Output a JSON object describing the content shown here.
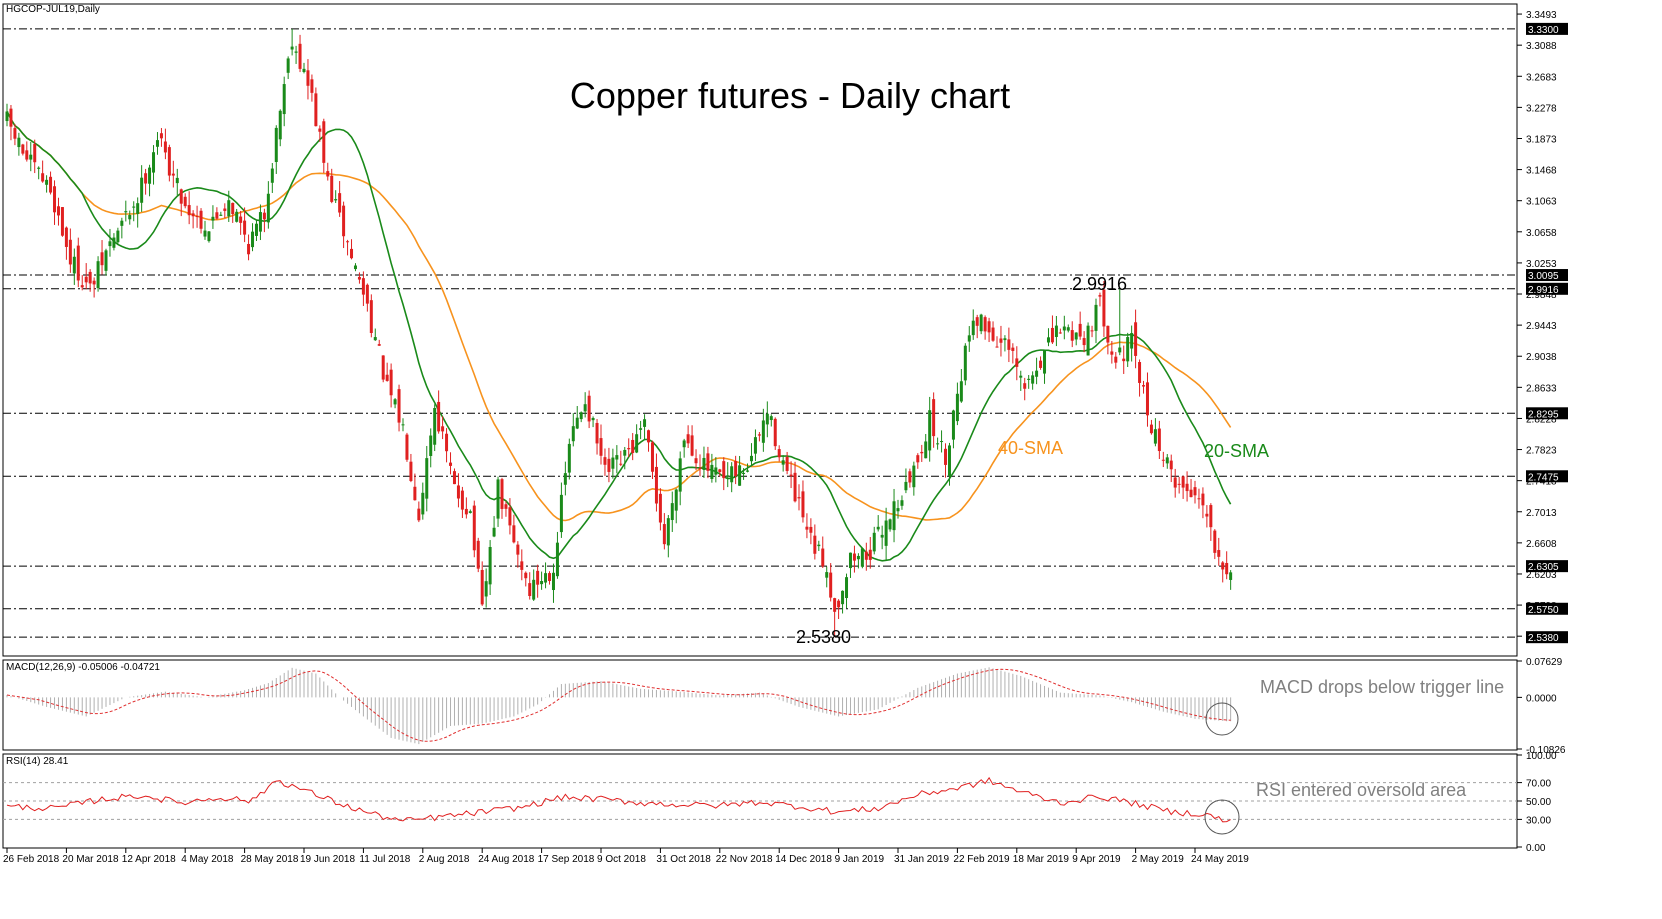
{
  "symbol_label": "HGCOP-JUL19,Daily",
  "chart_data": [
    {
      "type": "candlestick",
      "title": "Copper futures - Daily chart",
      "x_tick_labels": [
        "26 Feb 2018",
        "20 Mar 2018",
        "12 Apr 2018",
        "4 May 2018",
        "28 May 2018",
        "19 Jun 2018",
        "11 Jul 2018",
        "2 Aug 2018",
        "24 Aug 2018",
        "17 Sep 2018",
        "9 Oct 2018",
        "31 Oct 2018",
        "22 Nov 2018",
        "14 Dec 2018",
        "9 Jan 2019",
        "31 Jan 2019",
        "22 Feb 2019",
        "18 Mar 2019",
        "9 Apr 2019",
        "2 May 2019",
        "24 May 2019"
      ],
      "y_tick_labels": [
        "3.3493",
        "3.3088",
        "3.2683",
        "3.2278",
        "3.1873",
        "3.1468",
        "3.1063",
        "3.0658",
        "3.0253",
        "2.9848",
        "2.9443",
        "2.9038",
        "2.8633",
        "2.8228",
        "2.7823",
        "2.7418",
        "2.7013",
        "2.6608",
        "2.6203",
        "2.5798",
        "2.5393"
      ],
      "ylim": [
        2.5135,
        3.3624
      ],
      "levels": [
        {
          "label": "3.3300",
          "value": 3.33
        },
        {
          "label": "3.0095",
          "value": 3.0095
        },
        {
          "label": "2.9916",
          "value": 2.9916
        },
        {
          "label": "2.8295",
          "value": 2.8295
        },
        {
          "label": "2.7475",
          "value": 2.7475
        },
        {
          "label": "2.6305",
          "value": 2.6305
        },
        {
          "label": "2.5750",
          "value": 2.575
        },
        {
          "label": "2.5380",
          "value": 2.538
        }
      ],
      "annotations": {
        "high": {
          "label": "2.9916",
          "value": 2.9916
        },
        "low": {
          "label": "2.5380",
          "value": 2.538
        },
        "sma40": "40-SMA",
        "sma20": "20-SMA"
      },
      "anchors": [
        [
          0,
          3.21
        ],
        [
          5,
          3.16
        ],
        [
          11,
          3.12
        ],
        [
          16,
          3.03
        ],
        [
          21,
          2.99
        ],
        [
          26,
          3.05
        ],
        [
          33,
          3.11
        ],
        [
          38,
          3.19
        ],
        [
          45,
          3.1
        ],
        [
          51,
          3.07
        ],
        [
          56,
          3.11
        ],
        [
          61,
          3.05
        ],
        [
          65,
          3.09
        ],
        [
          69,
          3.23
        ],
        [
          72,
          3.32
        ],
        [
          77,
          3.24
        ],
        [
          81,
          3.13
        ],
        [
          86,
          3.05
        ],
        [
          91,
          2.97
        ],
        [
          96,
          2.86
        ],
        [
          100,
          2.81
        ],
        [
          104,
          2.7
        ],
        [
          108,
          2.84
        ],
        [
          113,
          2.73
        ],
        [
          117,
          2.7
        ],
        [
          120,
          2.57
        ],
        [
          124,
          2.73
        ],
        [
          128,
          2.66
        ],
        [
          132,
          2.6
        ],
        [
          138,
          2.63
        ],
        [
          142,
          2.79
        ],
        [
          146,
          2.85
        ],
        [
          151,
          2.75
        ],
        [
          156,
          2.77
        ],
        [
          161,
          2.81
        ],
        [
          166,
          2.66
        ],
        [
          171,
          2.8
        ],
        [
          176,
          2.76
        ],
        [
          181,
          2.74
        ],
        [
          187,
          2.76
        ],
        [
          192,
          2.83
        ],
        [
          197,
          2.75
        ],
        [
          203,
          2.66
        ],
        [
          207,
          2.63
        ],
        [
          209,
          2.57
        ],
        [
          213,
          2.64
        ],
        [
          218,
          2.65
        ],
        [
          223,
          2.7
        ],
        [
          228,
          2.74
        ],
        [
          233,
          2.82
        ],
        [
          237,
          2.77
        ],
        [
          240,
          2.86
        ],
        [
          244,
          2.96
        ],
        [
          249,
          2.93
        ],
        [
          253,
          2.91
        ],
        [
          257,
          2.86
        ],
        [
          261,
          2.9
        ],
        [
          266,
          2.94
        ],
        [
          272,
          2.93
        ],
        [
          276,
          2.97
        ],
        [
          280,
          2.9
        ],
        [
          284,
          2.92
        ],
        [
          288,
          2.83
        ],
        [
          293,
          2.76
        ],
        [
          297,
          2.73
        ],
        [
          302,
          2.72
        ],
        [
          305,
          2.66
        ],
        [
          308,
          2.63
        ]
      ]
    },
    {
      "type": "histogram",
      "label": "MACD(12,26,9) -0.05006 -0.04721",
      "y_tick_labels": [
        "0.07629",
        "0.0000",
        "-0.10826"
      ],
      "ylim": [
        -0.10826,
        0.07629
      ],
      "annotation": "MACD drops below trigger line",
      "anchors": [
        [
          0,
          0.005
        ],
        [
          10,
          -0.02
        ],
        [
          20,
          -0.04
        ],
        [
          30,
          0.0
        ],
        [
          40,
          0.012
        ],
        [
          50,
          0.0
        ],
        [
          60,
          0.015
        ],
        [
          66,
          0.03
        ],
        [
          72,
          0.062
        ],
        [
          78,
          0.05
        ],
        [
          84,
          0.0
        ],
        [
          90,
          -0.04
        ],
        [
          97,
          -0.085
        ],
        [
          104,
          -0.098
        ],
        [
          112,
          -0.06
        ],
        [
          120,
          -0.055
        ],
        [
          128,
          -0.04
        ],
        [
          134,
          -0.015
        ],
        [
          140,
          0.028
        ],
        [
          150,
          0.034
        ],
        [
          160,
          0.018
        ],
        [
          170,
          0.012
        ],
        [
          180,
          0.004
        ],
        [
          190,
          0.01
        ],
        [
          200,
          -0.02
        ],
        [
          210,
          -0.04
        ],
        [
          220,
          -0.025
        ],
        [
          230,
          0.02
        ],
        [
          240,
          0.05
        ],
        [
          248,
          0.063
        ],
        [
          256,
          0.045
        ],
        [
          266,
          0.01
        ],
        [
          276,
          0.004
        ],
        [
          284,
          -0.01
        ],
        [
          292,
          -0.03
        ],
        [
          300,
          -0.045
        ],
        [
          308,
          -0.05
        ]
      ]
    },
    {
      "type": "line",
      "label": "RSI(14) 28.41",
      "y_tick_labels": [
        "100.00",
        "70.00",
        "50.00",
        "30.00",
        "0.00"
      ],
      "ylim": [
        0,
        100
      ],
      "annotation": "RSI entered oversold area",
      "anchors": [
        [
          0,
          44
        ],
        [
          12,
          42
        ],
        [
          24,
          52
        ],
        [
          34,
          56
        ],
        [
          44,
          48
        ],
        [
          54,
          54
        ],
        [
          62,
          50
        ],
        [
          68,
          73
        ],
        [
          76,
          60
        ],
        [
          86,
          44
        ],
        [
          94,
          34
        ],
        [
          100,
          28
        ],
        [
          110,
          33
        ],
        [
          120,
          38
        ],
        [
          130,
          43
        ],
        [
          140,
          54
        ],
        [
          150,
          52
        ],
        [
          160,
          48
        ],
        [
          170,
          46
        ],
        [
          180,
          45
        ],
        [
          190,
          49
        ],
        [
          200,
          44
        ],
        [
          210,
          38
        ],
        [
          220,
          42
        ],
        [
          230,
          57
        ],
        [
          240,
          64
        ],
        [
          248,
          72
        ],
        [
          256,
          60
        ],
        [
          266,
          48
        ],
        [
          276,
          55
        ],
        [
          284,
          48
        ],
        [
          294,
          38
        ],
        [
          302,
          36
        ],
        [
          306,
          31
        ],
        [
          308,
          28
        ]
      ]
    }
  ]
}
